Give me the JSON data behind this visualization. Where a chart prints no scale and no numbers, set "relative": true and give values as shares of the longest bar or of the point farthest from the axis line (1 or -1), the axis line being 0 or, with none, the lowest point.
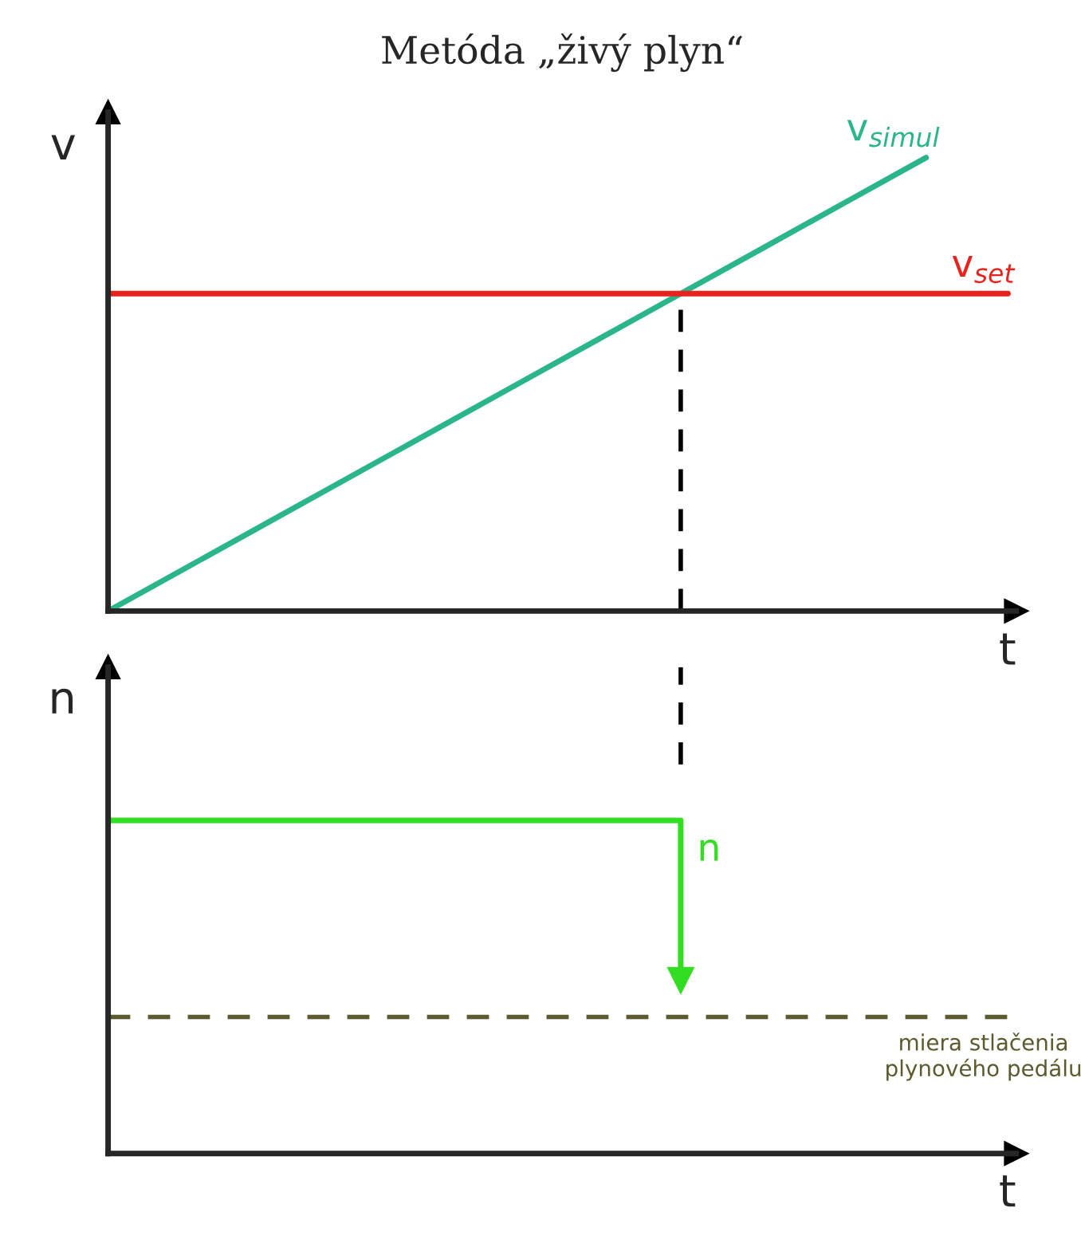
{
  "chart_data": [
    {
      "type": "line",
      "title": "Metóda „živý plyn“",
      "ylabel": "v",
      "xlabel": "t",
      "relative": true,
      "categories": [
        null,
        null,
        null,
        null,
        null,
        null,
        null,
        null,
        null,
        null,
        null,
        null
      ],
      "series": [
        {
          "name": "v$_{simul}$",
          "color": "#2bb58a",
          "values": [
            0,
            0.1,
            0.2,
            0.3,
            0.4,
            0.5,
            0.6,
            0.7,
            0.8,
            0.9,
            1,
            null
          ]
        },
        {
          "name": "v$_{set}$",
          "color": "#e8221c",
          "values": [
            0.7,
            0.7,
            0.7,
            0.7,
            0.7,
            0.7,
            0.7,
            0.7,
            0.7,
            0.7,
            0.7,
            0.7
          ]
        }
      ],
      "grid": false,
      "legend": false
    },
    {
      "type": "line",
      "ylabel": "n",
      "xlabel": "t",
      "relative": true,
      "categories": [
        null,
        null,
        null,
        null,
        null,
        null,
        null,
        null,
        null,
        null,
        null,
        null
      ],
      "series": [
        {
          "name": "n",
          "type": "step",
          "color": "#33dd22",
          "values": [
            1,
            1,
            1,
            1,
            1,
            1,
            1,
            0.52,
            null,
            null,
            null,
            null
          ]
        }
      ],
      "ref_lines": [
        {
          "axis": "y",
          "value": 0.41,
          "label": "miera stlačenia\nplynového pedálu",
          "color": "#5c5a2e",
          "line_style": "dashed"
        }
      ],
      "grid": false,
      "legend": false
    }
  ]
}
